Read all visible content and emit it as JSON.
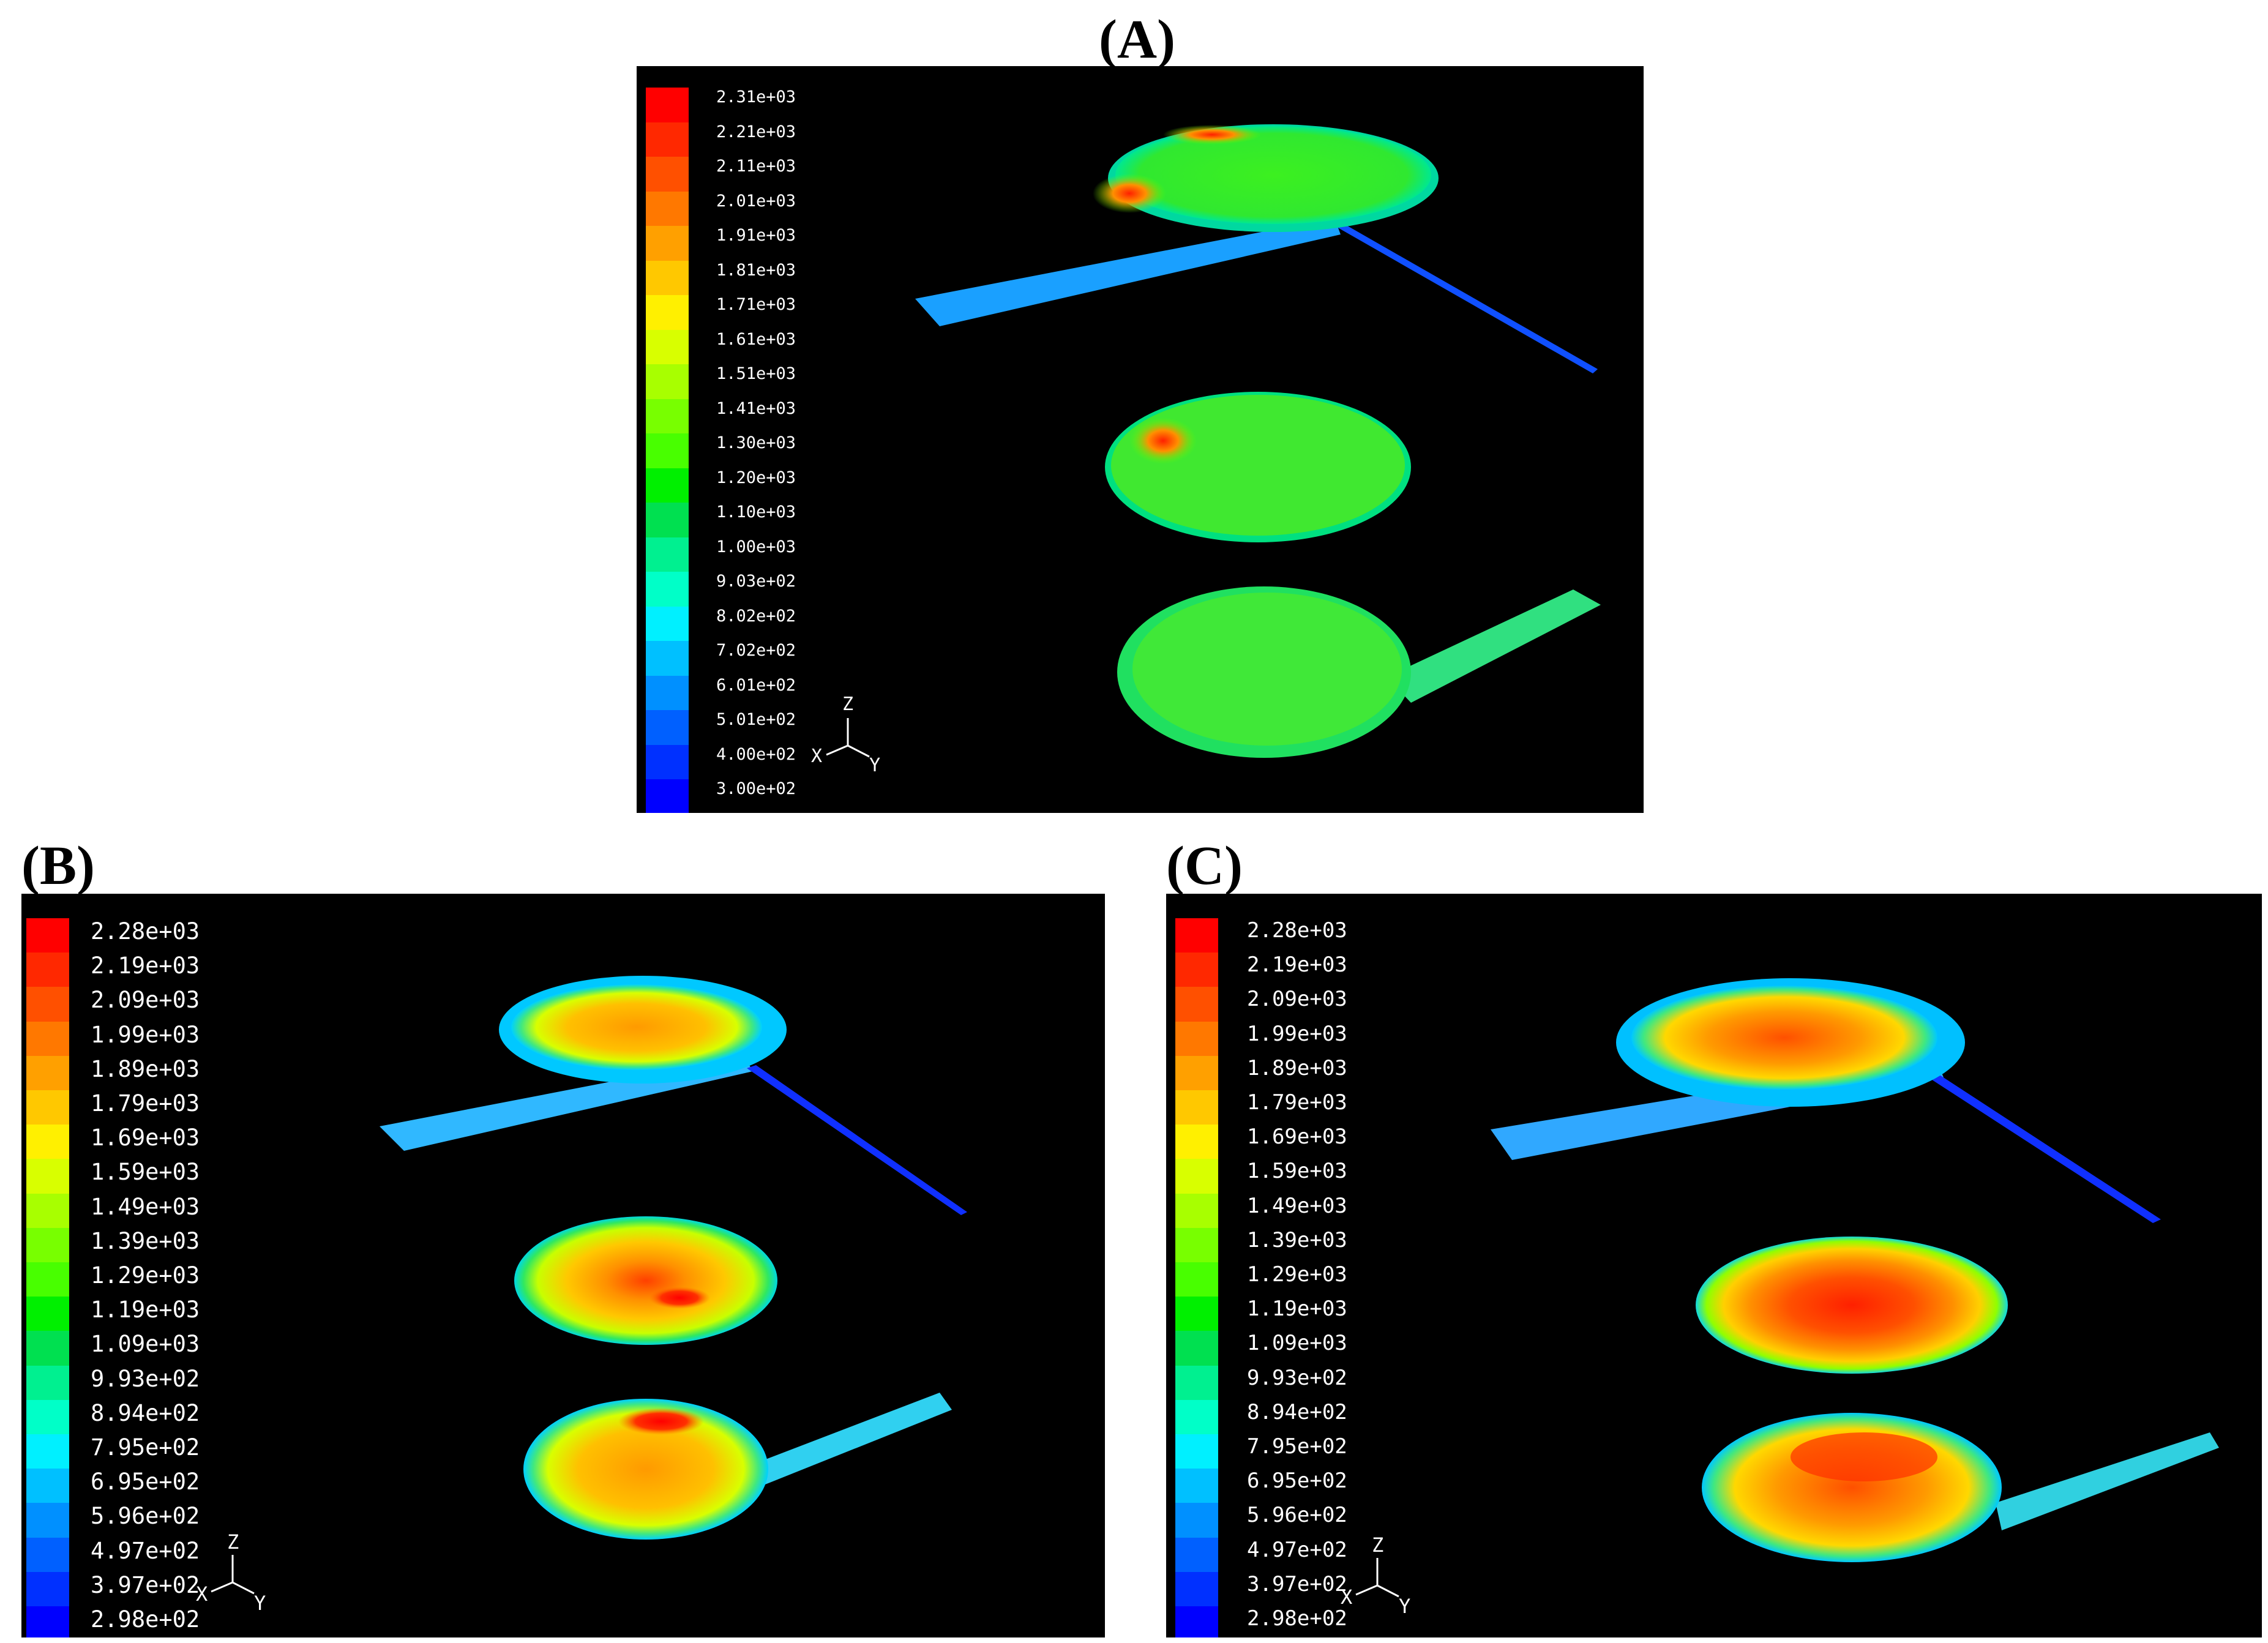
{
  "panels": [
    {
      "label": "(A)",
      "legend_values": [
        "2.31e+03",
        "2.21e+03",
        "2.11e+03",
        "2.01e+03",
        "1.91e+03",
        "1.81e+03",
        "1.71e+03",
        "1.61e+03",
        "1.51e+03",
        "1.41e+03",
        "1.30e+03",
        "1.20e+03",
        "1.10e+03",
        "1.00e+03",
        "9.03e+02",
        "8.02e+02",
        "7.02e+02",
        "6.01e+02",
        "5.01e+02",
        "4.00e+02",
        "3.00e+02"
      ],
      "axes": {
        "z": "Z",
        "x": "X",
        "y": "Y"
      }
    },
    {
      "label": "(B)",
      "legend_values": [
        "2.28e+03",
        "2.19e+03",
        "2.09e+03",
        "1.99e+03",
        "1.89e+03",
        "1.79e+03",
        "1.69e+03",
        "1.59e+03",
        "1.49e+03",
        "1.39e+03",
        "1.29e+03",
        "1.19e+03",
        "1.09e+03",
        "9.93e+02",
        "8.94e+02",
        "7.95e+02",
        "6.95e+02",
        "5.96e+02",
        "4.97e+02",
        "3.97e+02",
        "2.98e+02"
      ],
      "axes": {
        "z": "Z",
        "x": "X",
        "y": "Y"
      }
    },
    {
      "label": "(C)",
      "legend_values": [
        "2.28e+03",
        "2.19e+03",
        "2.09e+03",
        "1.99e+03",
        "1.89e+03",
        "1.79e+03",
        "1.69e+03",
        "1.59e+03",
        "1.49e+03",
        "1.39e+03",
        "1.29e+03",
        "1.19e+03",
        "1.09e+03",
        "9.93e+02",
        "8.94e+02",
        "7.95e+02",
        "6.95e+02",
        "5.96e+02",
        "4.97e+02",
        "3.97e+02",
        "2.98e+02"
      ],
      "axes": {
        "z": "Z",
        "x": "X",
        "y": "Y"
      }
    }
  ],
  "colormap": [
    "#ff0000",
    "#ff2800",
    "#ff5000",
    "#ff7800",
    "#ffa000",
    "#ffc800",
    "#fff000",
    "#d8ff00",
    "#a8ff00",
    "#78ff00",
    "#48ff00",
    "#00f000",
    "#00e050",
    "#00f090",
    "#00ffc8",
    "#00f0ff",
    "#00c0ff",
    "#0090ff",
    "#0060ff",
    "#0030ff",
    "#0000ff"
  ]
}
